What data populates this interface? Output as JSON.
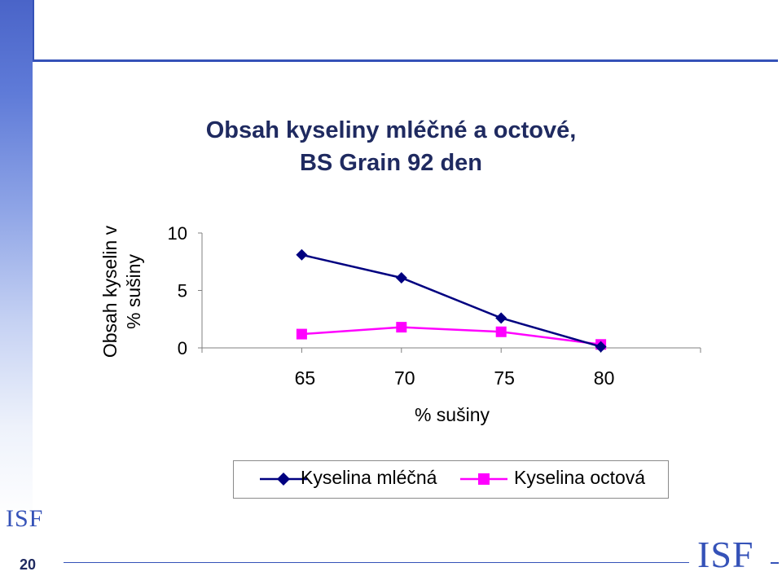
{
  "slide": {
    "title_line1": "Obsah kyseliny mléčné a octové,",
    "title_line2": "BS Grain 92 den",
    "logo_left": "ISF",
    "logo_right": "ISF",
    "page_number": "20",
    "accent_color": "#3552b8"
  },
  "chart_data": {
    "type": "line",
    "title": "Obsah kyseliny mléčné a octové, BS Grain 92 den",
    "subtitle": "",
    "xlabel": "% sušiny",
    "ylabel_line1": "Obsah kyselin v",
    "ylabel_line2": "% sušiny",
    "x": [
      65,
      70,
      75,
      80
    ],
    "x_tick_labels": [
      "65",
      "70",
      "75",
      "80"
    ],
    "y_ticks": [
      0,
      5,
      10
    ],
    "y_tick_labels": [
      "0",
      "5",
      "10"
    ],
    "xlim": [
      60,
      85
    ],
    "ylim": [
      0,
      10
    ],
    "grid": false,
    "legend_position": "bottom",
    "series": [
      {
        "name": "Kyselina mléčná",
        "values": [
          8.1,
          6.1,
          2.6,
          0.1
        ],
        "color": "#000080",
        "marker": "diamond"
      },
      {
        "name": "Kyselina octová",
        "values": [
          1.2,
          1.8,
          1.4,
          0.3
        ],
        "color": "#ff00ff",
        "marker": "square"
      }
    ]
  }
}
